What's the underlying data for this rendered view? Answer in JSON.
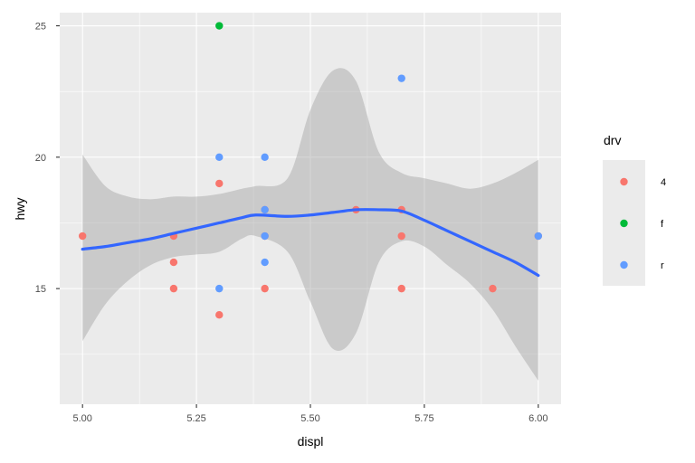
{
  "chart_data": {
    "type": "scatter",
    "xlabel": "displ",
    "ylabel": "hwy",
    "xlim": [
      4.95,
      6.05
    ],
    "ylim": [
      10.6,
      25.5
    ],
    "x_ticks": [
      5.0,
      5.25,
      5.5,
      5.75,
      6.0
    ],
    "x_tick_labels": [
      "5.00",
      "5.25",
      "5.50",
      "5.75",
      "6.00"
    ],
    "y_ticks": [
      15,
      20,
      25
    ],
    "y_tick_labels": [
      "15",
      "20",
      "25"
    ],
    "grid": true,
    "legend": {
      "title": "drv",
      "placement": "right",
      "entries": [
        {
          "label": "4",
          "color": "#F8766D"
        },
        {
          "label": "f",
          "color": "#00BA38"
        },
        {
          "label": "r",
          "color": "#619CFF"
        }
      ]
    },
    "series": [
      {
        "name": "4",
        "color": "#F8766D",
        "points": [
          [
            5.0,
            17
          ],
          [
            5.2,
            17
          ],
          [
            5.2,
            16
          ],
          [
            5.2,
            15
          ],
          [
            5.3,
            19
          ],
          [
            5.3,
            14
          ],
          [
            5.4,
            18
          ],
          [
            5.4,
            17
          ],
          [
            5.4,
            15
          ],
          [
            5.6,
            18
          ],
          [
            5.7,
            18
          ],
          [
            5.7,
            17
          ],
          [
            5.7,
            15
          ],
          [
            5.9,
            15
          ],
          [
            6.0,
            17
          ]
        ]
      },
      {
        "name": "f",
        "color": "#00BA38",
        "points": [
          [
            5.3,
            25
          ]
        ]
      },
      {
        "name": "r",
        "color": "#619CFF",
        "points": [
          [
            5.3,
            20
          ],
          [
            5.3,
            15
          ],
          [
            5.4,
            20
          ],
          [
            5.4,
            18
          ],
          [
            5.4,
            17
          ],
          [
            5.4,
            16
          ],
          [
            5.7,
            23
          ],
          [
            6.0,
            17
          ]
        ]
      }
    ],
    "smooth": {
      "method": "loess",
      "color": "#3366FF",
      "band_color": "#999999",
      "x": [
        5.0,
        5.05,
        5.1,
        5.15,
        5.2,
        5.25,
        5.3,
        5.35,
        5.38,
        5.45,
        5.5,
        5.55,
        5.6,
        5.65,
        5.7,
        5.75,
        5.8,
        5.85,
        5.9,
        5.95,
        6.0
      ],
      "y": [
        16.5,
        16.6,
        16.75,
        16.9,
        17.1,
        17.3,
        17.5,
        17.7,
        17.8,
        17.75,
        17.8,
        17.9,
        18.0,
        18.0,
        17.95,
        17.6,
        17.2,
        16.8,
        16.4,
        16.0,
        15.5
      ],
      "lower": [
        13.0,
        14.4,
        15.3,
        15.9,
        16.2,
        16.3,
        16.4,
        16.9,
        17.0,
        16.4,
        14.5,
        12.7,
        13.3,
        16.0,
        16.8,
        16.6,
        15.9,
        15.2,
        14.2,
        12.8,
        11.5
      ],
      "upper": [
        20.1,
        18.9,
        18.5,
        18.4,
        18.5,
        18.5,
        18.6,
        18.8,
        18.9,
        19.2,
        21.8,
        23.3,
        22.9,
        20.2,
        19.4,
        19.2,
        19.0,
        18.8,
        19.0,
        19.4,
        19.9
      ]
    }
  }
}
